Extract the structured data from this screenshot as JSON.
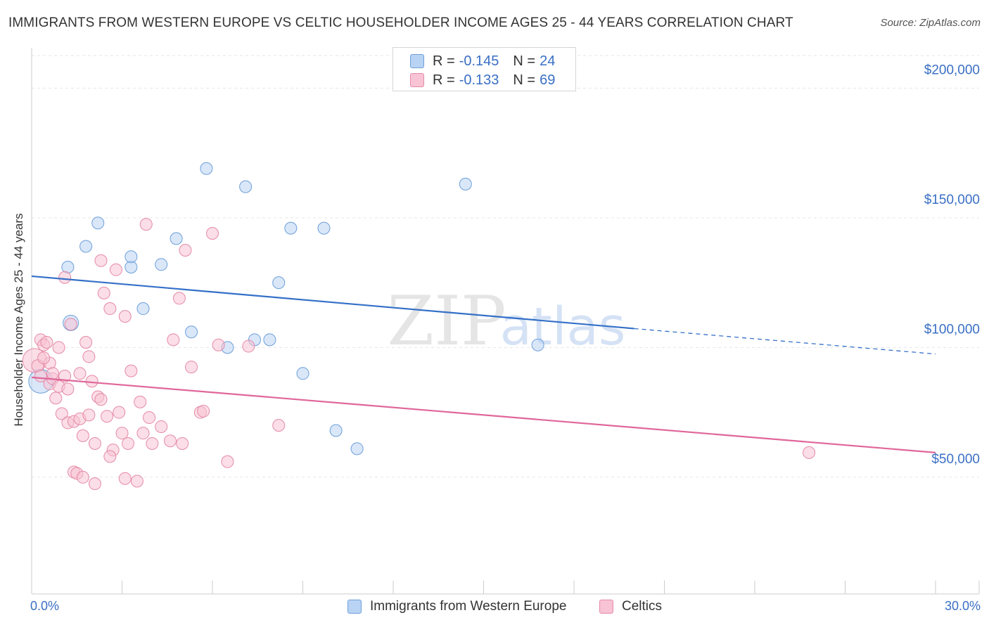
{
  "title": "IMMIGRANTS FROM WESTERN EUROPE VS CELTIC HOUSEHOLDER INCOME AGES 25 - 44 YEARS CORRELATION CHART",
  "source": "Source: ZipAtlas.com",
  "watermark": {
    "zip": "ZIP",
    "atlas": "atlas"
  },
  "legend": {
    "rows": [
      {
        "r_label": "R =",
        "r_value": "-0.145",
        "n_label": "N =",
        "n_value": "24"
      },
      {
        "r_label": "R =",
        "r_value": "-0.133",
        "n_label": "N =",
        "n_value": "69"
      }
    ]
  },
  "colors": {
    "blue_fill": "#b9d3f4",
    "blue_stroke": "#6d9fd9",
    "blue_line": "#3470c8",
    "pink_fill": "#f8c3d4",
    "pink_stroke": "#e58aa7",
    "pink_line": "#e0679a",
    "axis_text": "#3a6fc4",
    "grid": "#e6e6e6"
  },
  "chart_data": {
    "type": "scatter",
    "title": "IMMIGRANTS FROM WESTERN EUROPE VS CELTIC HOUSEHOLDER INCOME AGES 25 - 44 YEARS CORRELATION CHART",
    "xlabel": "",
    "ylabel": "Householder Income Ages 25 - 44 years",
    "xlim": [
      0,
      30
    ],
    "ylim": [
      5000,
      215000
    ],
    "x_tick_labels": [
      "0.0%",
      "30.0%"
    ],
    "y_ticks": [
      {
        "value": 50000,
        "label": "$50,000"
      },
      {
        "value": 100000,
        "label": "$100,000"
      },
      {
        "value": 150000,
        "label": "$150,000"
      },
      {
        "value": 200000,
        "label": "$200,000"
      }
    ],
    "series": [
      {
        "name": "Immigrants from Western Europe",
        "color": "blue",
        "r": -0.145,
        "n": 24,
        "trend": {
          "x_start": 0,
          "y_start": 127500,
          "x_solid_end": 20,
          "y_solid_end": 107300,
          "x_end": 30,
          "y_end": 97500
        },
        "points": [
          [
            0.3,
            87000,
            "large"
          ],
          [
            1.3,
            109500,
            "medium"
          ],
          [
            1.2,
            131000
          ],
          [
            1.8,
            139000
          ],
          [
            2.2,
            148000
          ],
          [
            3.3,
            131000
          ],
          [
            3.3,
            135000
          ],
          [
            3.7,
            115000
          ],
          [
            4.3,
            132000
          ],
          [
            4.8,
            142000
          ],
          [
            5.3,
            106000
          ],
          [
            5.8,
            169000
          ],
          [
            6.5,
            100000
          ],
          [
            7.1,
            162000
          ],
          [
            7.4,
            103000
          ],
          [
            7.9,
            103000
          ],
          [
            8.2,
            125000
          ],
          [
            8.6,
            146000
          ],
          [
            9.0,
            90000
          ],
          [
            9.7,
            146000
          ],
          [
            10.1,
            68000
          ],
          [
            10.8,
            61000
          ],
          [
            14.4,
            163000
          ],
          [
            16.8,
            101000
          ]
        ]
      },
      {
        "name": "Celtics",
        "color": "pink",
        "r": -0.133,
        "n": 69,
        "trend": {
          "x_start": 0,
          "y_start": 88500,
          "x_end": 30,
          "y_end": 59500
        },
        "points": [
          [
            0.1,
            95000,
            "large"
          ],
          [
            0.2,
            93000
          ],
          [
            0.3,
            89000
          ],
          [
            0.3,
            103000
          ],
          [
            0.4,
            101000
          ],
          [
            0.5,
            102000
          ],
          [
            0.6,
            86000
          ],
          [
            0.6,
            94000
          ],
          [
            0.7,
            88000
          ],
          [
            0.7,
            90000
          ],
          [
            0.8,
            80500
          ],
          [
            0.9,
            100000
          ],
          [
            0.9,
            85000
          ],
          [
            1.0,
            74500
          ],
          [
            1.1,
            89000
          ],
          [
            1.1,
            127000
          ],
          [
            1.2,
            84000
          ],
          [
            1.2,
            71000
          ],
          [
            1.3,
            109000
          ],
          [
            1.4,
            52000
          ],
          [
            1.4,
            71500
          ],
          [
            1.5,
            51500
          ],
          [
            1.6,
            72500
          ],
          [
            1.6,
            90000
          ],
          [
            1.7,
            66000
          ],
          [
            1.7,
            50000
          ],
          [
            1.8,
            102000
          ],
          [
            1.9,
            96500
          ],
          [
            1.9,
            74000
          ],
          [
            2.0,
            87000
          ],
          [
            2.1,
            47500
          ],
          [
            2.1,
            63000
          ],
          [
            2.2,
            81000
          ],
          [
            2.3,
            80000
          ],
          [
            2.3,
            133500
          ],
          [
            2.4,
            121000
          ],
          [
            2.5,
            73500
          ],
          [
            2.6,
            115000
          ],
          [
            2.7,
            60500
          ],
          [
            2.8,
            130000
          ],
          [
            2.9,
            75000
          ],
          [
            3.0,
            67000
          ],
          [
            3.1,
            112000
          ],
          [
            3.1,
            49500
          ],
          [
            3.2,
            63000
          ],
          [
            3.3,
            91000
          ],
          [
            3.5,
            48500
          ],
          [
            3.6,
            79000
          ],
          [
            3.7,
            67000
          ],
          [
            3.8,
            147500
          ],
          [
            3.9,
            73000
          ],
          [
            4.0,
            63000
          ],
          [
            4.3,
            69500
          ],
          [
            4.6,
            64000
          ],
          [
            4.7,
            103000
          ],
          [
            4.9,
            119000
          ],
          [
            5.0,
            63000
          ],
          [
            5.1,
            137500
          ],
          [
            5.3,
            92500
          ],
          [
            5.6,
            75000
          ],
          [
            5.7,
            75500
          ],
          [
            6.0,
            144000
          ],
          [
            6.2,
            101000
          ],
          [
            6.5,
            56000
          ],
          [
            7.2,
            100500
          ],
          [
            8.2,
            70000
          ],
          [
            25.8,
            59500
          ],
          [
            0.4,
            96000
          ],
          [
            2.6,
            58000
          ]
        ]
      }
    ]
  },
  "bottom_legend": {
    "items": [
      "Immigrants from Western Europe",
      "Celtics"
    ]
  }
}
